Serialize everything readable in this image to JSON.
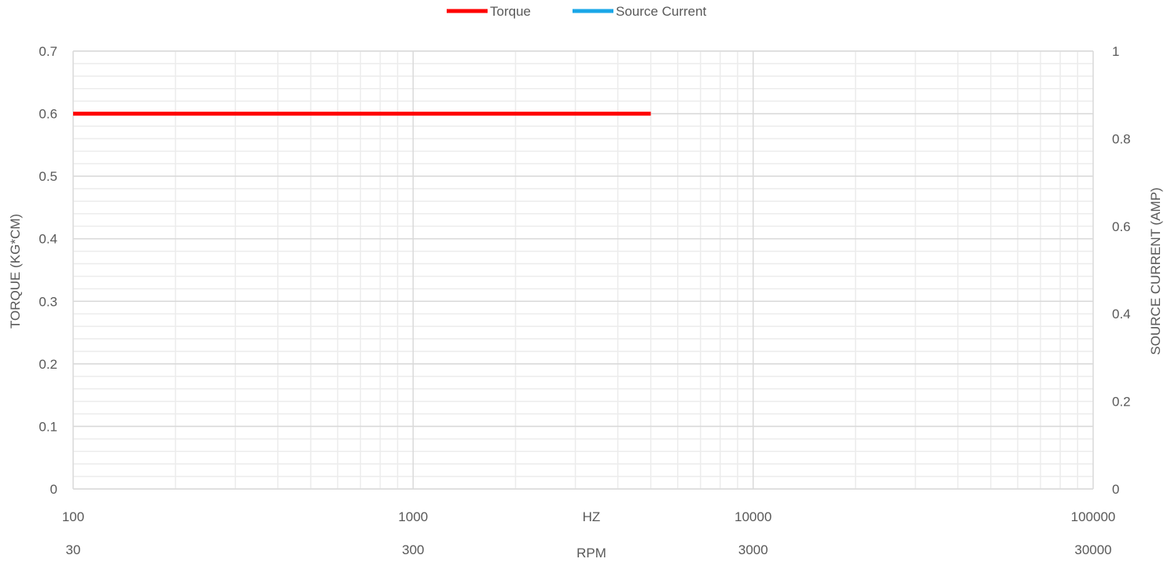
{
  "colors": {
    "torque": "#ff0000",
    "source_current": "#1aa7e8",
    "grid_major": "#d9d9d9",
    "grid_minor": "#ececec",
    "text": "#595959"
  },
  "chart_data": {
    "type": "line",
    "title": "",
    "legend": {
      "placement": "top-center",
      "entries": [
        "Torque",
        "Source Current"
      ]
    },
    "x_axis": {
      "scale": "log",
      "label": "HZ",
      "range": [
        100,
        100000
      ],
      "tick_values": [
        100,
        1000,
        10000,
        100000
      ],
      "tick_labels": [
        "100",
        "1000",
        "10000",
        "100000"
      ]
    },
    "x_axis_secondary": {
      "label": "RPM",
      "tick_labels": [
        "30",
        "300",
        "3000",
        "30000"
      ]
    },
    "y_axis": {
      "label": "TORQUE (KG*CM)",
      "range": [
        0,
        0.7
      ],
      "tick_values": [
        0,
        0.1,
        0.2,
        0.3,
        0.4,
        0.5,
        0.6,
        0.7
      ],
      "tick_labels": [
        "0",
        "0.1",
        "0.2",
        "0.3",
        "0.4",
        "0.5",
        "0.6",
        "0.7"
      ]
    },
    "y_axis_secondary": {
      "label": "SOURCE CURRENT (AMP)",
      "range": [
        0,
        1
      ],
      "tick_values": [
        0,
        0.2,
        0.4,
        0.6,
        0.8,
        1
      ],
      "tick_labels": [
        "0",
        "0.2",
        "0.4",
        "0.6",
        "0.8",
        "1"
      ]
    },
    "grid": true,
    "series": [
      {
        "name": "Torque",
        "axis": "left",
        "x": [
          100,
          5000
        ],
        "y": [
          0.6,
          0.6
        ]
      },
      {
        "name": "Source Current",
        "axis": "right",
        "x": [],
        "y": []
      }
    ]
  }
}
